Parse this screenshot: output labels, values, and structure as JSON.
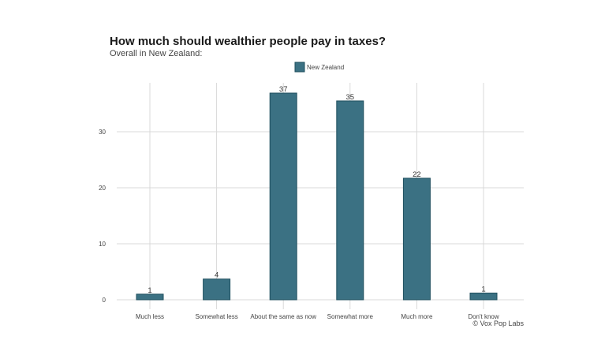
{
  "chart_data": {
    "type": "bar",
    "title": "How much should wealthier people pay in taxes?",
    "subtitle": "Overall in New Zealand:",
    "xlabel": "",
    "ylabel": "",
    "categories": [
      "Much less",
      "Somewhat less",
      "About the same as now",
      "Somewhat more",
      "Much more",
      "Don't know"
    ],
    "series": [
      {
        "name": "New Zealand",
        "color": "#3b7183",
        "values": [
          1.0,
          3.7,
          36.9,
          35.5,
          21.7,
          1.2
        ],
        "labels": [
          "1",
          "4",
          "37",
          "35",
          "22",
          "1"
        ]
      }
    ],
    "ylim": [
      0,
      39
    ],
    "yticks": [
      0,
      10,
      20,
      30
    ],
    "grid": true,
    "legend_position": "top-center",
    "credit": "© Vox Pop Labs"
  }
}
